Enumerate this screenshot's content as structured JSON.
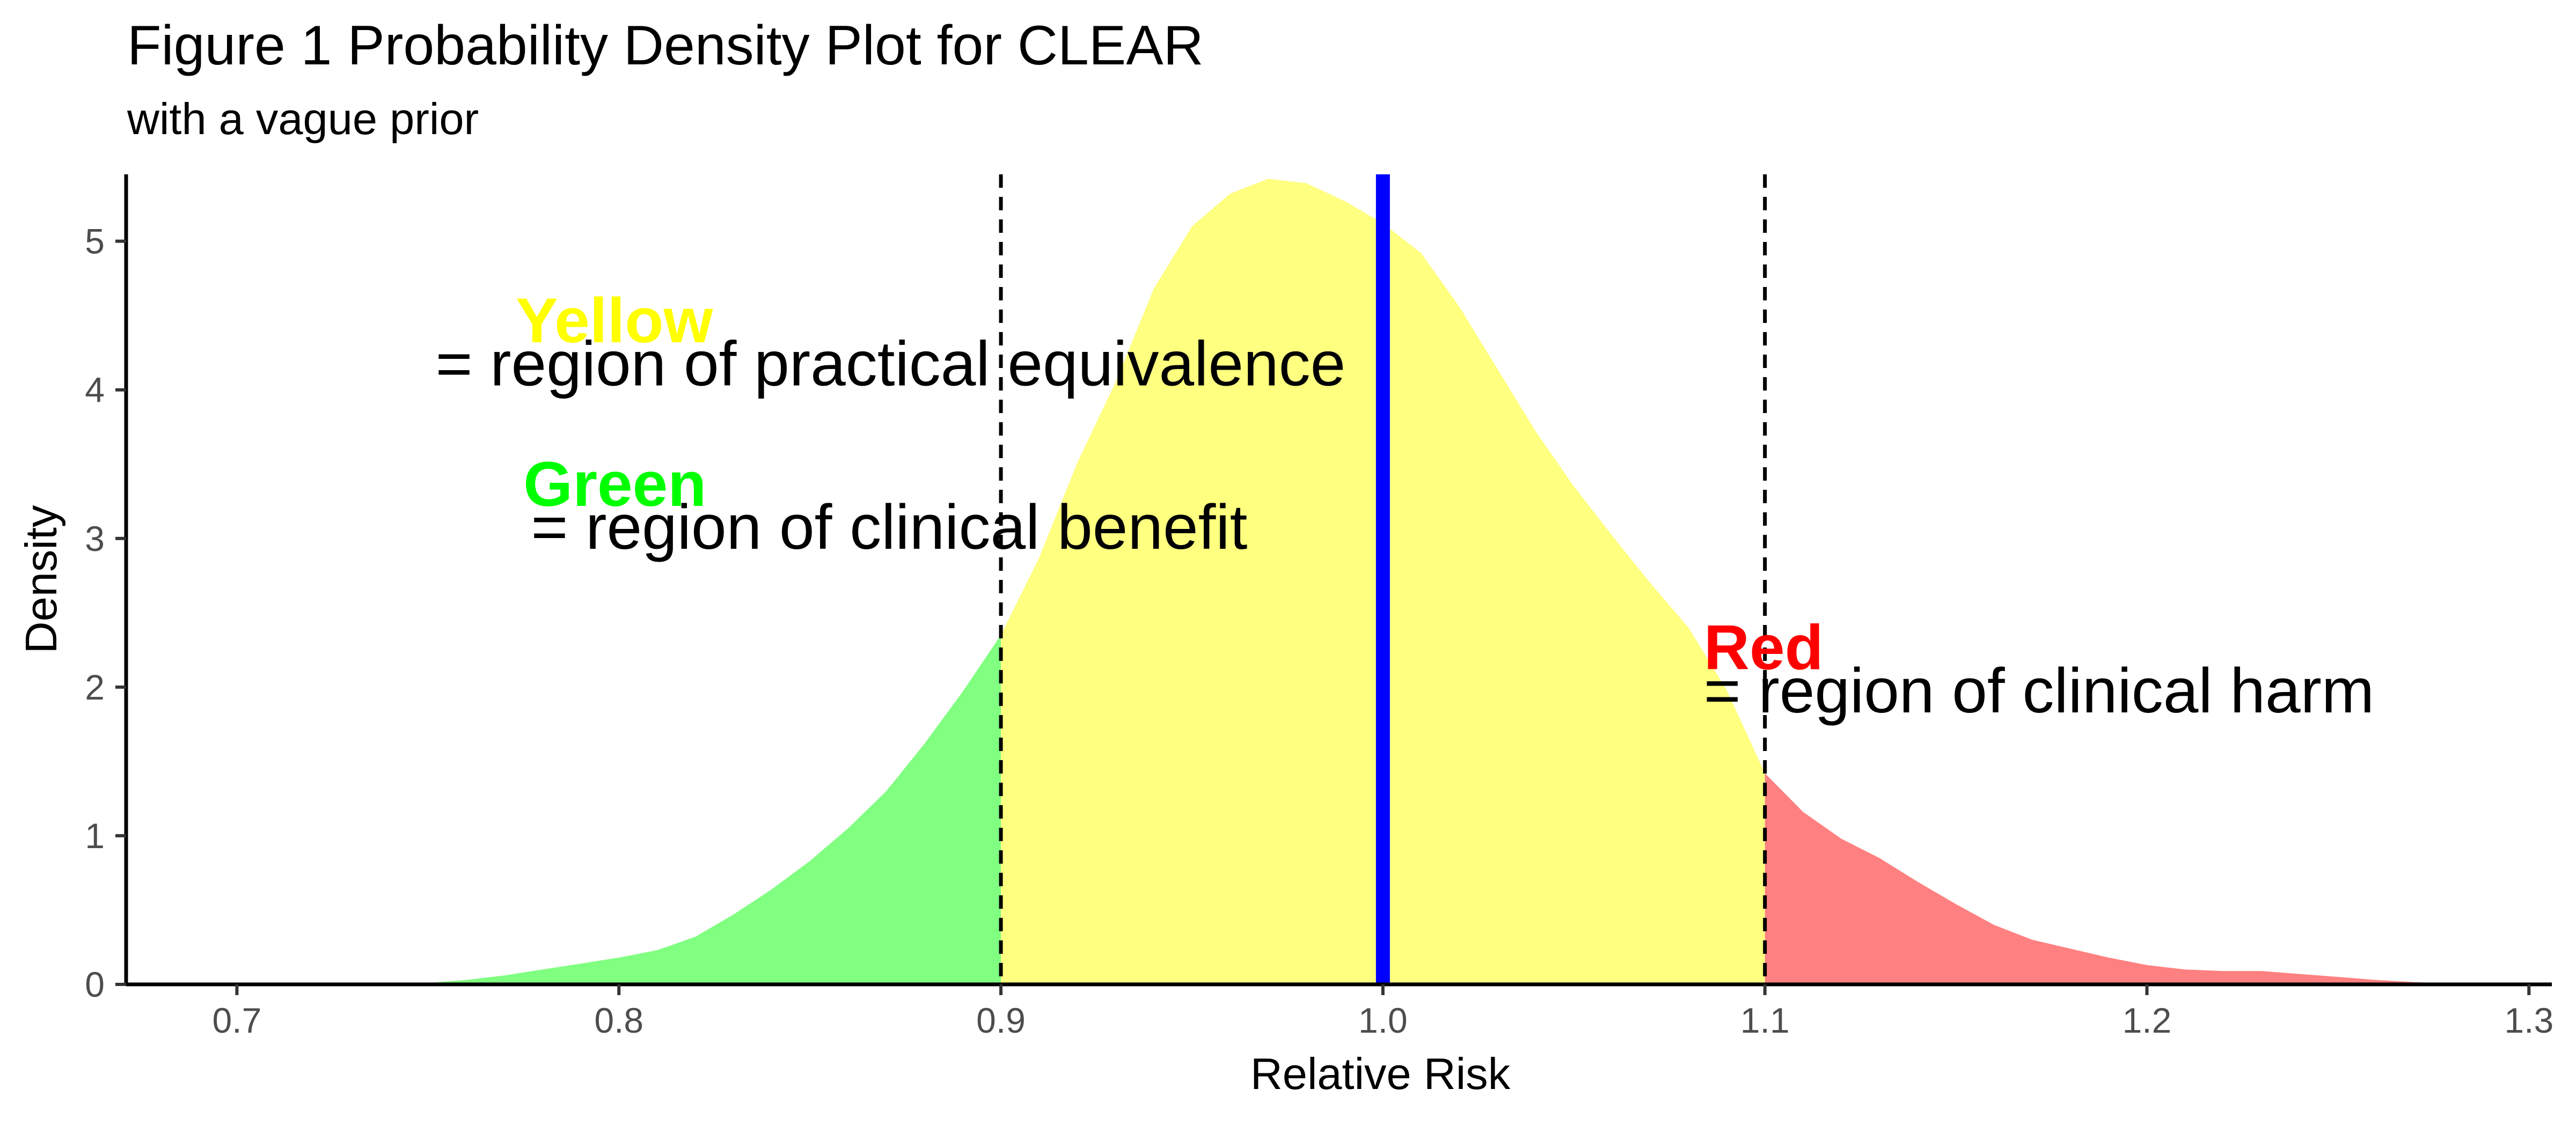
{
  "chart_data": {
    "type": "area",
    "title": "Figure 1 Probability Density Plot for CLEAR",
    "subtitle": "with a vague prior",
    "xlabel": "Relative Risk",
    "ylabel": "Density",
    "xlim": [
      0.671,
      1.306
    ],
    "ylim": [
      0,
      5.45
    ],
    "x_ticks": [
      "0.7",
      "0.8",
      "0.9",
      "1.0",
      "1.1",
      "1.2",
      "1.3"
    ],
    "y_ticks": [
      "0",
      "1",
      "2",
      "3",
      "4",
      "5"
    ],
    "grid": false,
    "density": {
      "x": [
        0.7,
        0.72,
        0.74,
        0.75,
        0.76,
        0.77,
        0.78,
        0.79,
        0.8,
        0.81,
        0.82,
        0.83,
        0.84,
        0.85,
        0.86,
        0.87,
        0.88,
        0.89,
        0.9,
        0.91,
        0.92,
        0.93,
        0.94,
        0.95,
        0.96,
        0.97,
        0.98,
        0.99,
        1.0,
        1.01,
        1.02,
        1.03,
        1.04,
        1.05,
        1.06,
        1.07,
        1.08,
        1.09,
        1.1,
        1.11,
        1.12,
        1.13,
        1.14,
        1.15,
        1.16,
        1.17,
        1.18,
        1.19,
        1.2,
        1.21,
        1.22,
        1.23,
        1.24,
        1.25,
        1.26,
        1.27,
        1.28,
        1.29,
        1.3
      ],
      "y": [
        0.0,
        0.0,
        0.003,
        0.01,
        0.03,
        0.06,
        0.1,
        0.14,
        0.18,
        0.23,
        0.32,
        0.47,
        0.64,
        0.83,
        1.05,
        1.3,
        1.62,
        1.97,
        2.35,
        2.87,
        3.51,
        4.05,
        4.68,
        5.1,
        5.32,
        5.42,
        5.39,
        5.27,
        5.12,
        4.92,
        4.56,
        4.14,
        3.72,
        3.35,
        3.02,
        2.7,
        2.4,
        1.98,
        1.42,
        1.16,
        0.98,
        0.85,
        0.69,
        0.54,
        0.4,
        0.3,
        0.24,
        0.18,
        0.13,
        0.1,
        0.09,
        0.09,
        0.07,
        0.05,
        0.03,
        0.015,
        0.005,
        0.002,
        0.0
      ]
    },
    "regions": [
      {
        "name": "benefit",
        "from": 0.671,
        "to": 0.9,
        "color": "#80ff80"
      },
      {
        "name": "equivalence",
        "from": 0.9,
        "to": 1.1,
        "color": "#ffff80"
      },
      {
        "name": "harm",
        "from": 1.1,
        "to": 1.306,
        "color": "#ff8080"
      }
    ],
    "vlines": [
      {
        "x": 0.9,
        "style": "dashed",
        "color": "#000000"
      },
      {
        "x": 1.1,
        "style": "dashed",
        "color": "#000000"
      },
      {
        "x": 1.0,
        "style": "solid",
        "color": "#0000ff"
      }
    ],
    "annotations": [
      {
        "label": "Yellow",
        "text": "= region of practical equivalence",
        "label_color": "#ffff00",
        "label_x": 0.773,
        "label_y": 4.32,
        "text_x": 0.752,
        "text_y": 4.03
      },
      {
        "label": "Green",
        "text": "= region of clinical benefit",
        "label_color": "#00ff00",
        "label_x": 0.775,
        "label_y": 3.22,
        "text_x": 0.777,
        "text_y": 2.93
      },
      {
        "label": "Red",
        "text": "= region of clinical harm",
        "label_color": "#ff0000",
        "label_x": 1.084,
        "label_y": 2.12,
        "text_x": 1.084,
        "text_y": 1.83
      }
    ]
  }
}
